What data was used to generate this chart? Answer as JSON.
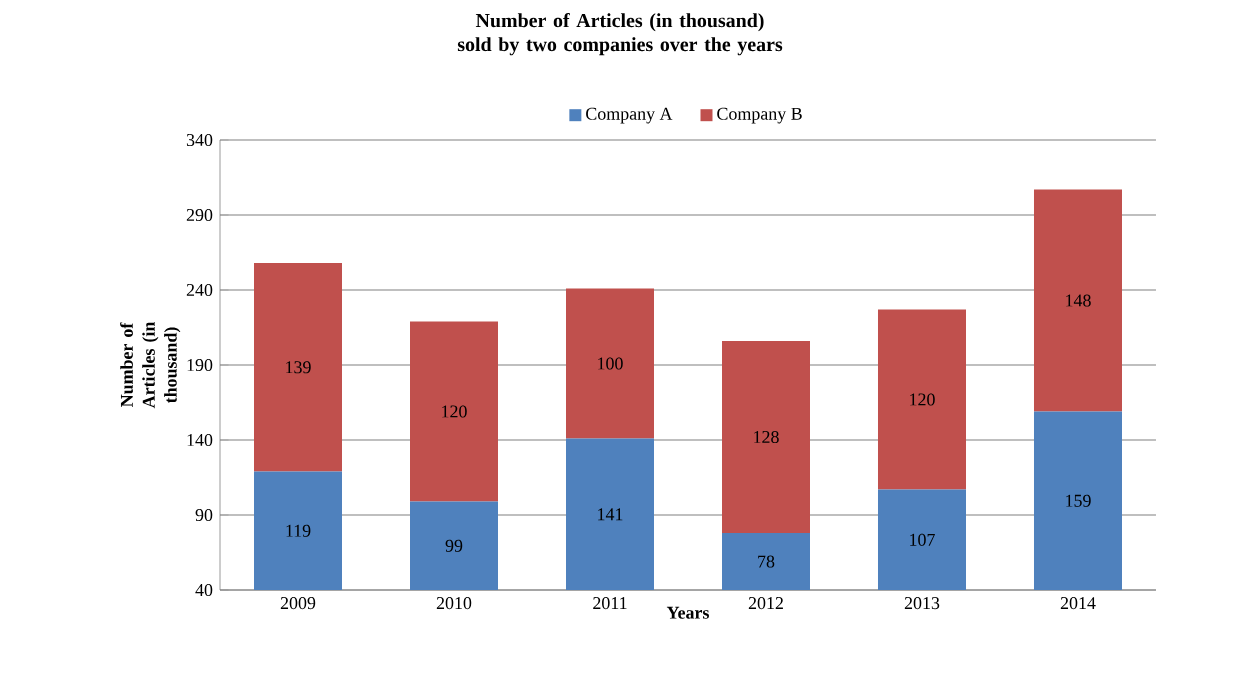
{
  "chart_data": {
    "type": "bar",
    "stacked": true,
    "title": "Number of Articles  (in thousand) sold by two companies over the years",
    "xlabel": "Years",
    "ylabel": "Number of Articles (in thousand)",
    "categories": [
      "2009",
      "2010",
      "2011",
      "2012",
      "2013",
      "2014"
    ],
    "series": [
      {
        "name": "Company A",
        "color": "#4f81bd",
        "values": [
          119,
          99,
          141,
          78,
          107,
          159
        ]
      },
      {
        "name": "Company B",
        "color": "#c0504d",
        "values": [
          139,
          120,
          100,
          128,
          120,
          148
        ]
      }
    ],
    "ylim": [
      40,
      340
    ],
    "yticks": [
      40,
      90,
      140,
      190,
      240,
      290,
      340
    ],
    "grid": "y",
    "legend": "top",
    "data_labels": true
  }
}
